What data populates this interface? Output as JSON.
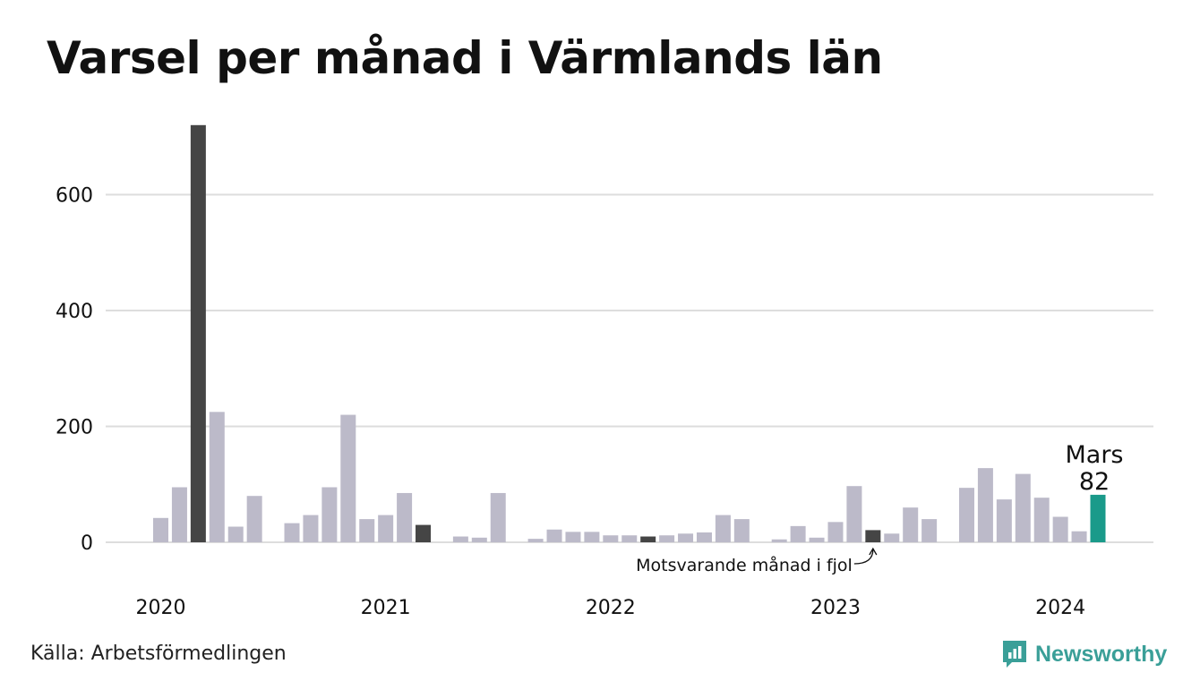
{
  "title": "Varsel per månad i Värmlands län",
  "source": "Källa: Arbetsförmedlingen",
  "brand": {
    "name": "Newsworthy",
    "icon": "newsworthy-logo-icon",
    "color": "#3a9f98"
  },
  "chart_data": {
    "type": "bar",
    "title": "Varsel per månad i Värmlands län",
    "xlabel": "",
    "ylabel": "",
    "ylim": [
      0,
      720
    ],
    "yticks": [
      0,
      200,
      400,
      600
    ],
    "xticks": [
      {
        "label": "2020",
        "index": 0
      },
      {
        "label": "2021",
        "index": 12
      },
      {
        "label": "2022",
        "index": 24
      },
      {
        "label": "2023",
        "index": 36
      },
      {
        "label": "2024",
        "index": 48
      }
    ],
    "grid": true,
    "colors": {
      "default": "#bcbac9",
      "same_month_previous_years": "#454545",
      "current": "#1a9a8a",
      "grid": "#dddddd"
    },
    "categories": [
      "2020-01",
      "2020-02",
      "2020-03",
      "2020-04",
      "2020-05",
      "2020-06",
      "2020-07",
      "2020-08",
      "2020-09",
      "2020-10",
      "2020-11",
      "2020-12",
      "2021-01",
      "2021-02",
      "2021-03",
      "2021-04",
      "2021-05",
      "2021-06",
      "2021-07",
      "2021-08",
      "2021-09",
      "2021-10",
      "2021-11",
      "2021-12",
      "2022-01",
      "2022-02",
      "2022-03",
      "2022-04",
      "2022-05",
      "2022-06",
      "2022-07",
      "2022-08",
      "2022-09",
      "2022-10",
      "2022-11",
      "2022-12",
      "2023-01",
      "2023-02",
      "2023-03",
      "2023-04",
      "2023-05",
      "2023-06",
      "2023-07",
      "2023-08",
      "2023-09",
      "2023-10",
      "2023-11",
      "2023-12",
      "2024-01",
      "2024-02",
      "2024-03"
    ],
    "values": [
      42,
      95,
      720,
      225,
      27,
      80,
      0,
      33,
      47,
      95,
      220,
      40,
      47,
      85,
      30,
      0,
      10,
      8,
      85,
      0,
      6,
      22,
      18,
      18,
      12,
      12,
      10,
      12,
      15,
      17,
      47,
      40,
      0,
      5,
      28,
      8,
      35,
      97,
      21,
      15,
      60,
      40,
      0,
      94,
      128,
      74,
      118,
      77,
      44,
      19,
      82
    ],
    "highlight_same_month": [
      2,
      14,
      26,
      38
    ],
    "current_index": 50,
    "annotations": {
      "current_month": "Mars",
      "current_value": "82",
      "previous_year": "Motsvarande månad i fjol"
    }
  }
}
